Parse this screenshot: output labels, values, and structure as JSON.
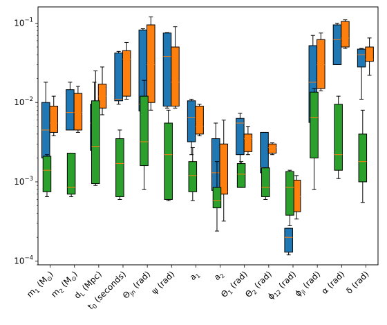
{
  "chart_data": {
    "type": "box",
    "y_scale": "log",
    "ylim": [
      9e-05,
      0.16
    ],
    "y_ticks": [
      {
        "value": 0.0001,
        "base": "10",
        "exp": "−4"
      },
      {
        "value": 0.001,
        "base": "10",
        "exp": "−3"
      },
      {
        "value": 0.01,
        "base": "10",
        "exp": "−2"
      },
      {
        "value": 0.1,
        "base": "10",
        "exp": "−1"
      }
    ],
    "colors": [
      "#1f77b4",
      "#ff7f0e",
      "#2ca02c"
    ],
    "median_color": "#ff7f0e",
    "categories": [
      {
        "parts": [
          {
            "t": "m"
          },
          {
            "t": "1",
            "sub": true
          },
          {
            "t": " (M"
          },
          {
            "t": "⊙",
            "sub": true
          },
          {
            "t": ")"
          }
        ]
      },
      {
        "parts": [
          {
            "t": "m"
          },
          {
            "t": "2",
            "sub": true
          },
          {
            "t": " (M"
          },
          {
            "t": "⊙",
            "sub": true
          },
          {
            "t": ")"
          }
        ]
      },
      {
        "parts": [
          {
            "t": "d"
          },
          {
            "t": "L",
            "sub": true
          },
          {
            "t": " (Mpc)"
          }
        ]
      },
      {
        "parts": [
          {
            "t": "t"
          },
          {
            "t": "0",
            "sub": true
          },
          {
            "t": " (seconds)"
          }
        ]
      },
      {
        "parts": [
          {
            "t": "Θ"
          },
          {
            "t": "jn",
            "sub": true
          },
          {
            "t": " (rad)"
          }
        ]
      },
      {
        "parts": [
          {
            "t": "ψ (rad)"
          }
        ]
      },
      {
        "parts": [
          {
            "t": "a"
          },
          {
            "t": "1",
            "sub": true
          }
        ]
      },
      {
        "parts": [
          {
            "t": "a"
          },
          {
            "t": "2",
            "sub": true
          }
        ]
      },
      {
        "parts": [
          {
            "t": "Θ"
          },
          {
            "t": "1",
            "sub": true
          },
          {
            "t": " (rad)"
          }
        ]
      },
      {
        "parts": [
          {
            "t": "Θ"
          },
          {
            "t": "2",
            "sub": true
          },
          {
            "t": " (rad)"
          }
        ]
      },
      {
        "parts": [
          {
            "t": "ϕ"
          },
          {
            "t": "12",
            "sub": true
          },
          {
            "t": " (rad)"
          }
        ]
      },
      {
        "parts": [
          {
            "t": "ϕ"
          },
          {
            "t": "jl",
            "sub": true
          },
          {
            "t": " (rad)"
          }
        ]
      },
      {
        "parts": [
          {
            "t": "α (rad)"
          }
        ]
      },
      {
        "parts": [
          {
            "t": "δ (rad)"
          }
        ]
      }
    ],
    "series": [
      {
        "boxes": [
          {
            "min": 0.002,
            "q1": 0.002,
            "med": 0.0045,
            "q3": 0.01,
            "max": 0.018
          },
          {
            "min": 0.0045,
            "q1": 0.0045,
            "med": 0.0075,
            "q3": 0.0145,
            "max": 0.018
          },
          {
            "min": 0.0025,
            "q1": 0.0025,
            "med": 0.0055,
            "q3": 0.0095,
            "max": 0.018
          },
          {
            "min": 0.0095,
            "q1": 0.0105,
            "med": 0.011,
            "q3": 0.042,
            "max": 0.044
          },
          {
            "min": 0.0078,
            "q1": 0.0078,
            "med": 0.0095,
            "q3": 0.082,
            "max": 0.085
          },
          {
            "min": 0.0085,
            "q1": 0.009,
            "med": 0.038,
            "q3": 0.075,
            "max": 0.076
          },
          {
            "min": 0.0022,
            "q1": 0.0032,
            "med": 0.0065,
            "q3": 0.0105,
            "max": 0.011
          },
          {
            "min": 0.00072,
            "q1": 0.00078,
            "med": 0.0013,
            "q3": 0.0035,
            "max": 0.0055
          },
          {
            "min": 0.0014,
            "q1": 0.0022,
            "med": 0.0055,
            "q3": 0.0063,
            "max": 0.0073
          },
          {
            "min": 0.0012,
            "q1": 0.0013,
            "med": 0.0015,
            "q3": 0.0042,
            "max": 0.0042
          },
          {
            "min": 0.00012,
            "q1": 0.00013,
            "med": 0.0002,
            "q3": 0.00026,
            "max": 0.00026
          },
          {
            "min": 0.0055,
            "q1": 0.0056,
            "med": 0.018,
            "q3": 0.052,
            "max": 0.07
          },
          {
            "min": 0.03,
            "q1": 0.03,
            "med": 0.062,
            "q3": 0.095,
            "max": 0.1
          },
          {
            "min": 0.011,
            "q1": 0.028,
            "med": 0.04,
            "q3": 0.047,
            "max": 0.048
          }
        ]
      },
      {
        "boxes": [
          {
            "min": 0.0038,
            "q1": 0.0042,
            "med": 0.0055,
            "q3": 0.009,
            "max": 0.012
          },
          {
            "min": 0.0042,
            "q1": 0.0045,
            "med": 0.0075,
            "q3": 0.013,
            "max": 0.016
          },
          {
            "min": 0.007,
            "q1": 0.0085,
            "med": 0.012,
            "q3": 0.017,
            "max": 0.028
          },
          {
            "min": 0.011,
            "q1": 0.012,
            "med": 0.035,
            "q3": 0.045,
            "max": 0.057
          },
          {
            "min": 0.008,
            "q1": 0.01,
            "med": 0.03,
            "q3": 0.095,
            "max": 0.12
          },
          {
            "min": 0.0085,
            "q1": 0.009,
            "med": 0.018,
            "q3": 0.05,
            "max": 0.09
          },
          {
            "min": 0.0038,
            "q1": 0.004,
            "med": 0.005,
            "q3": 0.009,
            "max": 0.0095
          },
          {
            "min": 0.00032,
            "q1": 0.0007,
            "med": 0.00075,
            "q3": 0.003,
            "max": 0.006
          },
          {
            "min": 0.0022,
            "q1": 0.0024,
            "med": 0.0035,
            "q3": 0.004,
            "max": 0.005
          },
          {
            "min": 0.0022,
            "q1": 0.0023,
            "med": 0.0027,
            "q3": 0.003,
            "max": 0.0031
          },
          {
            "min": 0.00034,
            "q1": 0.00042,
            "med": 0.00065,
            "q3": 0.00105,
            "max": 0.0012
          },
          {
            "min": 0.014,
            "q1": 0.015,
            "med": 0.03,
            "q3": 0.062,
            "max": 0.075
          },
          {
            "min": 0.048,
            "q1": 0.05,
            "med": 0.065,
            "q3": 0.105,
            "max": 0.11
          },
          {
            "min": 0.022,
            "q1": 0.033,
            "med": 0.035,
            "q3": 0.05,
            "max": 0.065
          }
        ]
      },
      {
        "boxes": [
          {
            "min": 0.00065,
            "q1": 0.00075,
            "med": 0.0014,
            "q3": 0.0021,
            "max": 0.0022
          },
          {
            "min": 0.00065,
            "q1": 0.0007,
            "med": 0.00085,
            "q3": 0.0023,
            "max": 0.0023
          },
          {
            "min": 0.0009,
            "q1": 0.00095,
            "med": 0.0028,
            "q3": 0.0105,
            "max": 0.025
          },
          {
            "min": 0.0006,
            "q1": 0.00065,
            "med": 0.0017,
            "q3": 0.0035,
            "max": 0.0045
          },
          {
            "min": 0.0008,
            "q1": 0.0016,
            "med": 0.0032,
            "q3": 0.012,
            "max": 0.019
          },
          {
            "min": 0.00058,
            "q1": 0.0006,
            "med": 0.0022,
            "q3": 0.0055,
            "max": 0.008
          },
          {
            "min": 0.00058,
            "q1": 0.00075,
            "med": 0.0012,
            "q3": 0.0018,
            "max": 0.0027
          },
          {
            "min": 0.00024,
            "q1": 0.00047,
            "med": 0.00058,
            "q3": 0.00085,
            "max": 0.0018
          },
          {
            "min": 0.00085,
            "q1": 0.00085,
            "med": 0.00125,
            "q3": 0.0017,
            "max": 0.0018
          },
          {
            "min": 0.0006,
            "q1": 0.00065,
            "med": 0.00085,
            "q3": 0.0015,
            "max": 0.0015
          },
          {
            "min": 0.00028,
            "q1": 0.00038,
            "med": 0.00085,
            "q3": 0.00135,
            "max": 0.0014
          },
          {
            "min": 0.0008,
            "q1": 0.002,
            "med": 0.0065,
            "q3": 0.0135,
            "max": 0.015
          },
          {
            "min": 0.0011,
            "q1": 0.0014,
            "med": 0.0022,
            "q3": 0.0095,
            "max": 0.012
          },
          {
            "min": 0.00055,
            "q1": 0.001,
            "med": 0.0018,
            "q3": 0.004,
            "max": 0.008
          }
        ]
      }
    ]
  }
}
